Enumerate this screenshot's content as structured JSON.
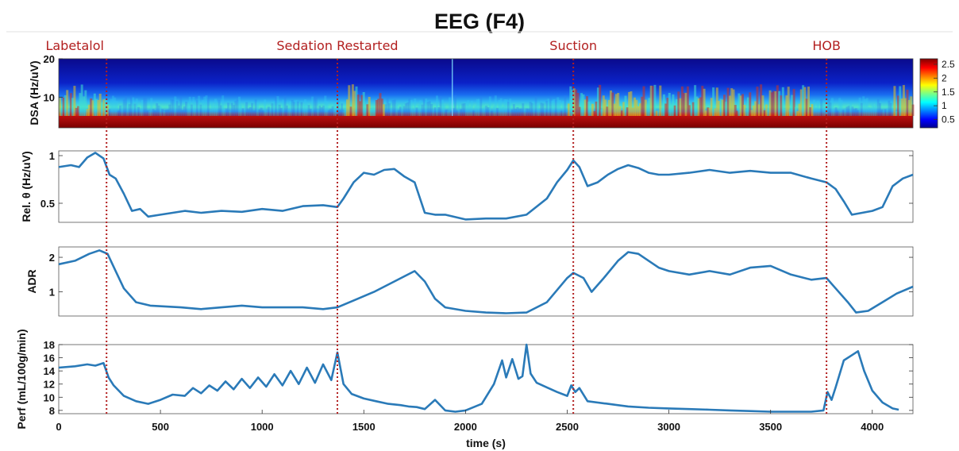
{
  "title": "EEG (F4)",
  "chart_data": {
    "type": "line",
    "title": "EEG (F4)",
    "xlabel": "time (s)",
    "xlim": [
      0,
      4200
    ],
    "xticks": [
      0,
      500,
      1000,
      1500,
      2000,
      2500,
      3000,
      3500,
      4000
    ],
    "events": [
      {
        "label": "Labetalol",
        "time": 235
      },
      {
        "label": "Sedation Restarted",
        "time": 1370
      },
      {
        "label": "Suction",
        "time": 2530
      },
      {
        "label": "HOB",
        "time": 3775
      }
    ],
    "event_color": "#b21f1f",
    "line_color": "#2a7ab8",
    "spectrogram": {
      "ylabel": "DSA (Hz/uV)",
      "ylim": [
        2,
        20
      ],
      "yticks": [
        10,
        20
      ],
      "colorbar_ticks": [
        "0.5",
        "1",
        "1.5",
        "2",
        "2.5"
      ],
      "colorbar_range": [
        0.2,
        2.7
      ],
      "colormap": "jet"
    },
    "panels": [
      {
        "id": "rel-theta",
        "ylabel": "Rel. θ (Hz/uV)",
        "ylim": [
          0.3,
          1.05
        ],
        "yticks": [
          0.5,
          1
        ],
        "x": [
          0,
          60,
          100,
          140,
          180,
          220,
          250,
          280,
          320,
          360,
          400,
          440,
          500,
          560,
          620,
          700,
          800,
          900,
          1000,
          1100,
          1200,
          1300,
          1370,
          1400,
          1450,
          1500,
          1550,
          1600,
          1650,
          1700,
          1750,
          1800,
          1850,
          1900,
          2000,
          2100,
          2200,
          2300,
          2400,
          2450,
          2500,
          2530,
          2560,
          2600,
          2650,
          2700,
          2750,
          2800,
          2850,
          2900,
          2950,
          3000,
          3100,
          3200,
          3300,
          3400,
          3500,
          3600,
          3700,
          3775,
          3820,
          3860,
          3900,
          3950,
          4000,
          4050,
          4100,
          4150,
          4200
        ],
        "values": [
          0.88,
          0.9,
          0.88,
          0.98,
          1.03,
          0.97,
          0.8,
          0.76,
          0.6,
          0.42,
          0.44,
          0.36,
          0.38,
          0.4,
          0.42,
          0.4,
          0.42,
          0.41,
          0.44,
          0.42,
          0.47,
          0.48,
          0.46,
          0.55,
          0.72,
          0.82,
          0.8,
          0.85,
          0.86,
          0.78,
          0.72,
          0.4,
          0.38,
          0.38,
          0.33,
          0.34,
          0.34,
          0.38,
          0.55,
          0.72,
          0.85,
          0.95,
          0.88,
          0.68,
          0.72,
          0.8,
          0.86,
          0.9,
          0.87,
          0.82,
          0.8,
          0.8,
          0.82,
          0.85,
          0.82,
          0.84,
          0.82,
          0.82,
          0.76,
          0.72,
          0.65,
          0.52,
          0.38,
          0.4,
          0.42,
          0.46,
          0.68,
          0.76,
          0.8
        ]
      },
      {
        "id": "adr",
        "ylabel": "ADR",
        "ylim": [
          0.3,
          2.3
        ],
        "yticks": [
          1,
          2
        ],
        "x": [
          0,
          80,
          150,
          200,
          240,
          280,
          320,
          380,
          450,
          600,
          700,
          800,
          900,
          1000,
          1100,
          1200,
          1300,
          1370,
          1450,
          1550,
          1650,
          1750,
          1800,
          1850,
          1900,
          2000,
          2100,
          2200,
          2300,
          2400,
          2500,
          2530,
          2580,
          2620,
          2680,
          2750,
          2800,
          2850,
          2900,
          2950,
          3000,
          3100,
          3200,
          3300,
          3400,
          3500,
          3600,
          3700,
          3775,
          3820,
          3880,
          3920,
          3980,
          4050,
          4120,
          4200
        ],
        "values": [
          1.8,
          1.9,
          2.1,
          2.2,
          2.1,
          1.6,
          1.1,
          0.7,
          0.6,
          0.55,
          0.5,
          0.55,
          0.6,
          0.55,
          0.55,
          0.55,
          0.5,
          0.55,
          0.75,
          1.0,
          1.3,
          1.6,
          1.3,
          0.8,
          0.55,
          0.45,
          0.4,
          0.38,
          0.4,
          0.7,
          1.4,
          1.55,
          1.4,
          1.0,
          1.4,
          1.9,
          2.15,
          2.1,
          1.9,
          1.7,
          1.6,
          1.5,
          1.6,
          1.5,
          1.7,
          1.75,
          1.5,
          1.35,
          1.4,
          1.1,
          0.7,
          0.4,
          0.45,
          0.7,
          0.95,
          1.15
        ]
      },
      {
        "id": "perf",
        "ylabel": "Perf (mL/100g/min)",
        "ylim": [
          7.5,
          18
        ],
        "yticks": [
          8,
          10,
          12,
          14,
          16,
          18
        ],
        "x": [
          0,
          80,
          140,
          180,
          220,
          245,
          270,
          320,
          380,
          440,
          500,
          560,
          620,
          660,
          700,
          740,
          780,
          820,
          860,
          900,
          940,
          980,
          1020,
          1060,
          1100,
          1140,
          1180,
          1220,
          1260,
          1300,
          1340,
          1370,
          1400,
          1440,
          1500,
          1560,
          1620,
          1680,
          1720,
          1760,
          1800,
          1850,
          1900,
          1950,
          2000,
          2080,
          2140,
          2180,
          2200,
          2230,
          2260,
          2280,
          2300,
          2320,
          2350,
          2400,
          2450,
          2500,
          2520,
          2540,
          2560,
          2600,
          2700,
          2800,
          2900,
          3000,
          3100,
          3200,
          3300,
          3400,
          3500,
          3600,
          3700,
          3760,
          3780,
          3800,
          3820,
          3860,
          3900,
          3930,
          3960,
          4000,
          4050,
          4100,
          4130
        ],
        "values": [
          14.5,
          14.7,
          15.0,
          14.8,
          15.2,
          13.0,
          11.8,
          10.2,
          9.4,
          9.0,
          9.6,
          10.4,
          10.2,
          11.4,
          10.6,
          11.8,
          11.0,
          12.4,
          11.2,
          12.8,
          11.4,
          13.0,
          11.6,
          13.5,
          11.8,
          14.0,
          12.0,
          14.5,
          12.2,
          15.0,
          12.6,
          16.8,
          12.0,
          10.5,
          9.8,
          9.4,
          9.0,
          8.8,
          8.6,
          8.5,
          8.2,
          9.6,
          8.0,
          7.8,
          8.0,
          9.0,
          12.0,
          15.6,
          13.0,
          15.8,
          12.8,
          13.2,
          18.0,
          13.6,
          12.2,
          11.5,
          10.8,
          10.2,
          11.8,
          10.8,
          11.4,
          9.4,
          9.0,
          8.6,
          8.4,
          8.3,
          8.2,
          8.1,
          8.0,
          7.9,
          7.8,
          7.8,
          7.8,
          8.0,
          10.8,
          9.6,
          11.5,
          15.6,
          16.4,
          17.0,
          14.0,
          11.0,
          9.2,
          8.3,
          8.1
        ]
      }
    ]
  }
}
